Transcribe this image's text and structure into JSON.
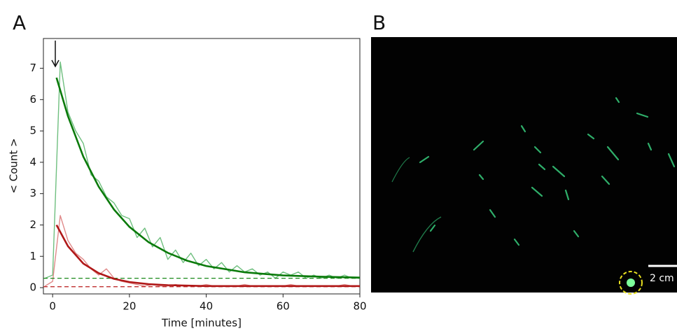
{
  "chart_data": {
    "type": "line",
    "panel_label": "A",
    "xlabel": "Time [minutes]",
    "ylabel": "< Count >",
    "xlim": [
      -2.4,
      80
    ],
    "ylim": [
      -0.2,
      7.95
    ],
    "xticks": [
      0,
      20,
      40,
      60,
      80
    ],
    "yticks": [
      0,
      1,
      2,
      3,
      4,
      5,
      6,
      7
    ],
    "series": [
      {
        "color": "#6fbf7f",
        "width": 1.4,
        "dash": false,
        "x": [
          -2,
          0,
          2,
          4,
          6,
          8,
          10,
          12,
          14,
          16,
          18,
          20,
          22,
          24,
          26,
          28,
          30,
          32,
          34,
          36,
          38,
          40,
          42,
          44,
          46,
          48,
          50,
          52,
          54,
          56,
          58,
          60,
          62,
          64,
          66,
          68,
          70,
          72,
          74,
          76,
          78,
          80
        ],
        "values": [
          0.3,
          0.4,
          7.2,
          5.6,
          5.0,
          4.6,
          3.6,
          3.4,
          2.9,
          2.7,
          2.3,
          2.2,
          1.6,
          1.9,
          1.3,
          1.6,
          0.9,
          1.2,
          0.8,
          1.1,
          0.7,
          0.9,
          0.6,
          0.8,
          0.5,
          0.7,
          0.5,
          0.6,
          0.4,
          0.5,
          0.3,
          0.5,
          0.4,
          0.5,
          0.3,
          0.4,
          0.3,
          0.4,
          0.3,
          0.4,
          0.3,
          0.3
        ]
      },
      {
        "color": "#e08a8a",
        "width": 1.4,
        "dash": false,
        "x": [
          -2,
          0,
          2,
          4,
          6,
          8,
          10,
          12,
          14,
          16,
          18,
          20,
          22,
          24,
          26,
          28,
          30,
          32,
          34,
          36,
          38,
          40,
          42,
          44,
          46,
          48,
          50,
          52,
          54,
          56,
          58,
          60,
          62,
          64,
          66,
          68,
          70,
          72,
          74,
          76,
          78,
          80
        ],
        "values": [
          0.05,
          0.2,
          2.3,
          1.5,
          1.1,
          0.9,
          0.6,
          0.4,
          0.6,
          0.3,
          0.2,
          0.15,
          0.1,
          0.05,
          0.1,
          0.05,
          0.05,
          0.1,
          0.05,
          0.05,
          0.05,
          0.1,
          0.05,
          0.05,
          0.05,
          0.05,
          0.1,
          0.05,
          0.05,
          0.05,
          0.05,
          0.05,
          0.1,
          0.05,
          0.05,
          0.05,
          0.05,
          0.05,
          0.05,
          0.1,
          0.05,
          0.05
        ]
      },
      {
        "color": "#1a8a1a",
        "width": 1.3,
        "dash": true,
        "x": [
          -2.4,
          80
        ],
        "values": [
          0.3,
          0.3
        ]
      },
      {
        "color": "#c03030",
        "width": 1.3,
        "dash": true,
        "x": [
          -2.4,
          80
        ],
        "values": [
          0.03,
          0.03
        ]
      },
      {
        "color": "#0a7a0a",
        "width": 2.6,
        "dash": false,
        "x": [
          1,
          4,
          8,
          12,
          16,
          20,
          25,
          30,
          35,
          40,
          50,
          60,
          70,
          80
        ],
        "values": [
          6.7,
          5.47,
          4.18,
          3.22,
          2.49,
          1.94,
          1.45,
          1.11,
          0.86,
          0.69,
          0.49,
          0.39,
          0.35,
          0.32
        ]
      },
      {
        "color": "#b01818",
        "width": 2.6,
        "dash": false,
        "x": [
          1,
          4,
          8,
          12,
          16,
          20,
          25,
          30,
          40,
          60,
          80
        ],
        "values": [
          2.0,
          1.32,
          0.77,
          0.46,
          0.28,
          0.18,
          0.11,
          0.08,
          0.05,
          0.05,
          0.05
        ]
      }
    ]
  },
  "panel_b": {
    "panel_label": "B",
    "scale_bar": "2 cm"
  }
}
